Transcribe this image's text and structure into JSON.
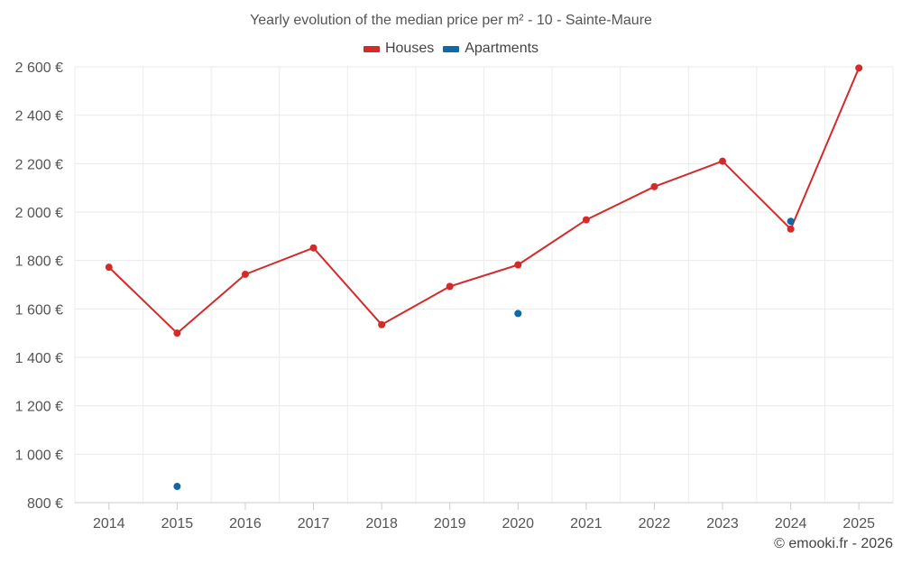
{
  "chart_data": {
    "type": "line",
    "title": "Yearly evolution of the median price per m² - 10 - Sainte-Maure",
    "categories": [
      "2014",
      "2015",
      "2016",
      "2017",
      "2018",
      "2019",
      "2020",
      "2021",
      "2022",
      "2023",
      "2024",
      "2025"
    ],
    "ylim": [
      800,
      2600
    ],
    "yticks": [
      800,
      1000,
      1200,
      1400,
      1600,
      1800,
      2000,
      2200,
      2400,
      2600
    ],
    "ytick_labels": [
      "800 €",
      "1 000 €",
      "1 200 €",
      "1 400 €",
      "1 600 €",
      "1 800 €",
      "2 000 €",
      "2 200 €",
      "2 400 €",
      "2 600 €"
    ],
    "grid": true,
    "legend_position": "top-center",
    "series": [
      {
        "name": "Houses",
        "color": "#d32a2a",
        "style": "line-markers",
        "values": [
          1772,
          1500,
          1743,
          1852,
          1535,
          1693,
          1782,
          1968,
          2105,
          2210,
          1930,
          2595
        ]
      },
      {
        "name": "Apartments",
        "color": "#0f68a8",
        "style": "markers",
        "values": [
          null,
          867,
          null,
          null,
          null,
          null,
          1581,
          null,
          null,
          null,
          1962,
          null
        ]
      }
    ]
  },
  "footer": {
    "credit": "© emooki.fr - 2026"
  }
}
